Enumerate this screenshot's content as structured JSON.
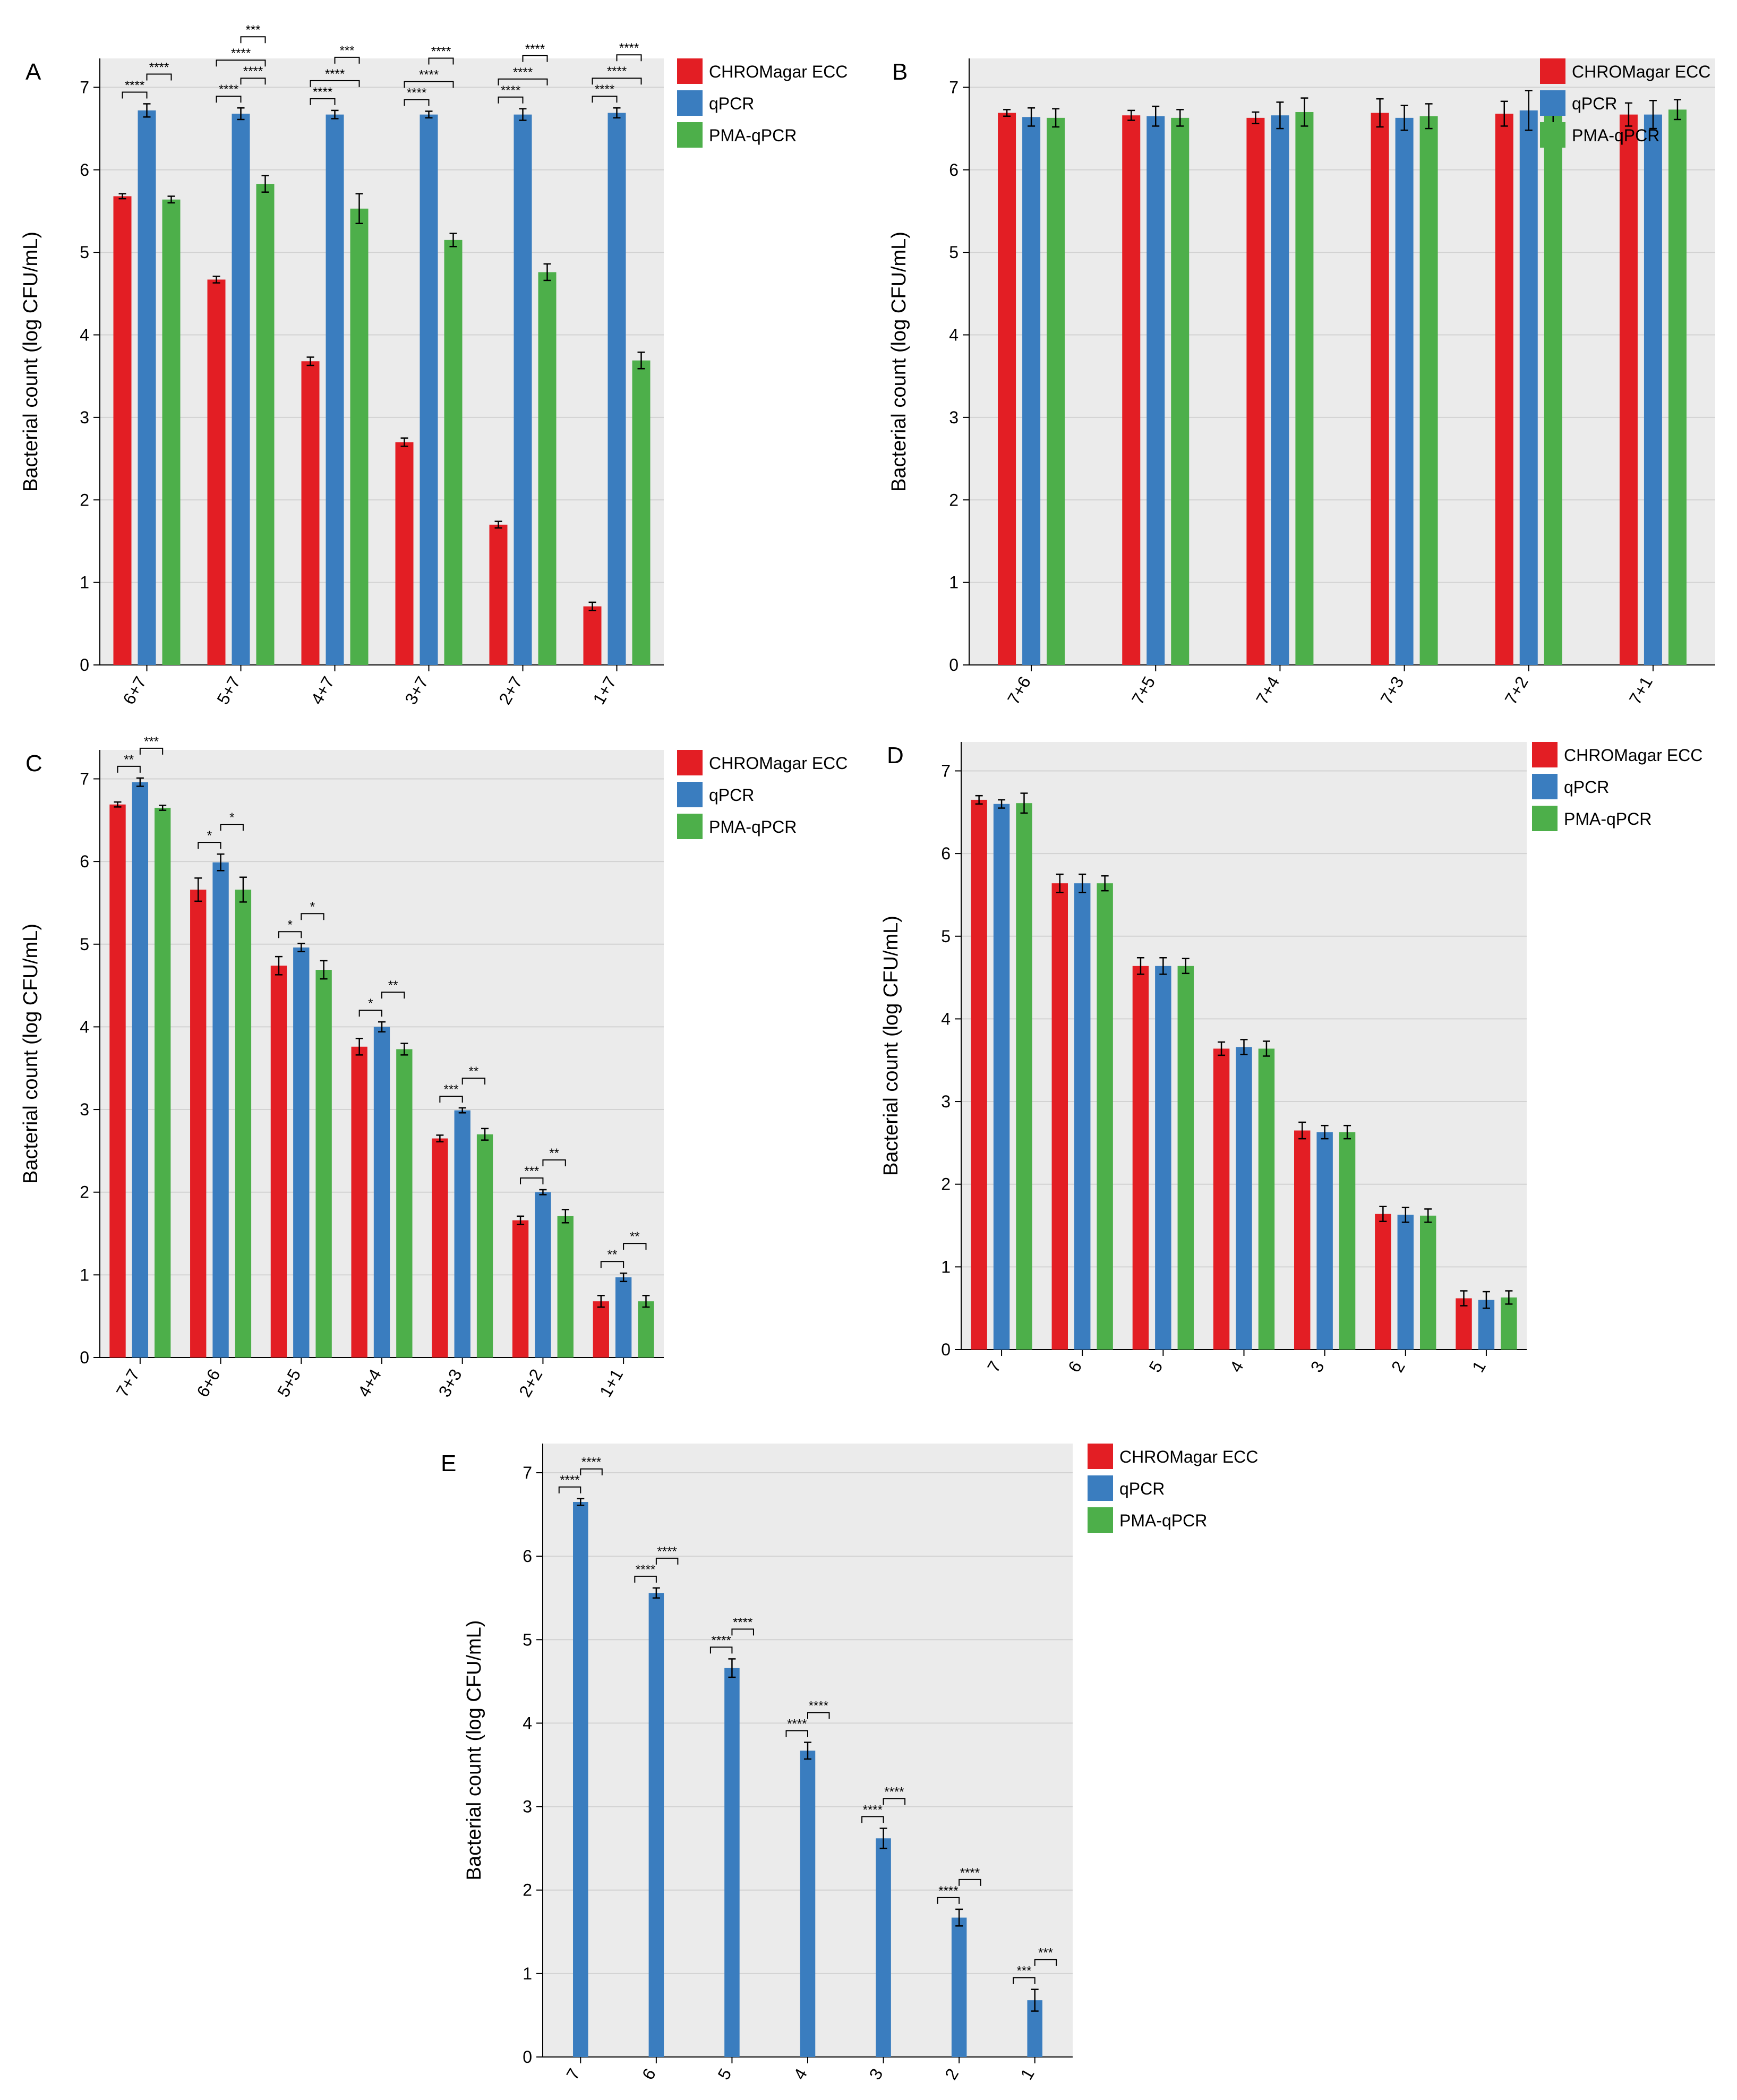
{
  "legend": {
    "items": [
      "CHROMagar ECC",
      "qPCR",
      "PMA-qPCR"
    ]
  },
  "colors": {
    "CHROMagar ECC": "#e31e24",
    "qPCR": "#3a7dbf",
    "PMA-qPCR": "#4daf4a",
    "panel_background": "#ebebeb",
    "gridline": "#d2d2d2"
  },
  "chart_data": [
    {
      "panel": "A",
      "type": "bar",
      "ylabel": "Bacterial count (log CFU/mL)",
      "ylim": [
        0,
        7.35
      ],
      "yticks": [
        0,
        1,
        2,
        3,
        4,
        5,
        6,
        7
      ],
      "grid": true,
      "legend_position": "right",
      "categories": [
        "6+7",
        "5+7",
        "4+7",
        "3+7",
        "2+7",
        "1+7"
      ],
      "series": [
        {
          "name": "CHROMagar ECC",
          "values": [
            5.68,
            4.67,
            3.68,
            2.7,
            1.7,
            0.71
          ],
          "errors": [
            0.03,
            0.04,
            0.05,
            0.05,
            0.04,
            0.05
          ]
        },
        {
          "name": "qPCR",
          "values": [
            6.72,
            6.68,
            6.67,
            6.67,
            6.67,
            6.69
          ],
          "errors": [
            0.08,
            0.07,
            0.05,
            0.04,
            0.07,
            0.06
          ]
        },
        {
          "name": "PMA-qPCR",
          "values": [
            5.64,
            5.83,
            5.53,
            5.15,
            4.76,
            3.69
          ],
          "errors": [
            0.04,
            0.1,
            0.18,
            0.08,
            0.1,
            0.1
          ]
        }
      ],
      "significance": [
        {
          "group": 0,
          "pair": "CHROMagar ECC-qPCR",
          "label": "****"
        },
        {
          "group": 0,
          "pair": "qPCR-PMA-qPCR",
          "label": "****"
        },
        {
          "group": 1,
          "pair": "CHROMagar ECC-qPCR",
          "label": "****"
        },
        {
          "group": 1,
          "pair": "qPCR-PMA-qPCR",
          "label": "****"
        },
        {
          "group": 1,
          "pair": "CHROMagar ECC-PMA-qPCR",
          "label": "****"
        },
        {
          "group": 1,
          "pair": "qPCR-PMA-qPCR",
          "label": "***",
          "tier": 2
        },
        {
          "group": 2,
          "pair": "CHROMagar ECC-qPCR",
          "label": "****"
        },
        {
          "group": 2,
          "pair": "CHROMagar ECC-PMA-qPCR",
          "label": "****"
        },
        {
          "group": 2,
          "pair": "qPCR-PMA-qPCR",
          "label": "***",
          "tier": 2
        },
        {
          "group": 3,
          "pair": "CHROMagar ECC-qPCR",
          "label": "****"
        },
        {
          "group": 3,
          "pair": "CHROMagar ECC-PMA-qPCR",
          "label": "****"
        },
        {
          "group": 3,
          "pair": "qPCR-PMA-qPCR",
          "label": "****",
          "tier": 2
        },
        {
          "group": 4,
          "pair": "CHROMagar ECC-qPCR",
          "label": "****"
        },
        {
          "group": 4,
          "pair": "CHROMagar ECC-PMA-qPCR",
          "label": "****"
        },
        {
          "group": 4,
          "pair": "qPCR-PMA-qPCR",
          "label": "****",
          "tier": 2
        },
        {
          "group": 5,
          "pair": "CHROMagar ECC-qPCR",
          "label": "****"
        },
        {
          "group": 5,
          "pair": "CHROMagar ECC-PMA-qPCR",
          "label": "****"
        },
        {
          "group": 5,
          "pair": "qPCR-PMA-qPCR",
          "label": "****",
          "tier": 2
        }
      ]
    },
    {
      "panel": "B",
      "type": "bar",
      "ylabel": "Bacterial count (log CFU/mL)",
      "ylim": [
        0,
        7.35
      ],
      "yticks": [
        0,
        1,
        2,
        3,
        4,
        5,
        6,
        7
      ],
      "grid": true,
      "legend_position": "right",
      "categories": [
        "7+6",
        "7+5",
        "7+4",
        "7+3",
        "7+2",
        "7+1"
      ],
      "series": [
        {
          "name": "CHROMagar ECC",
          "values": [
            6.69,
            6.66,
            6.63,
            6.69,
            6.68,
            6.67
          ],
          "errors": [
            0.04,
            0.06,
            0.07,
            0.17,
            0.15,
            0.14
          ]
        },
        {
          "name": "qPCR",
          "values": [
            6.64,
            6.65,
            6.66,
            6.63,
            6.72,
            6.67
          ],
          "errors": [
            0.11,
            0.12,
            0.16,
            0.15,
            0.24,
            0.17
          ]
        },
        {
          "name": "PMA-qPCR",
          "values": [
            6.63,
            6.63,
            6.7,
            6.65,
            6.66,
            6.73
          ],
          "errors": [
            0.11,
            0.1,
            0.17,
            0.15,
            0.12,
            0.12
          ]
        }
      ],
      "significance": []
    },
    {
      "panel": "C",
      "type": "bar",
      "ylabel": "Bacterial count (log CFU/mL)",
      "ylim": [
        0,
        7.35
      ],
      "yticks": [
        0,
        1,
        2,
        3,
        4,
        5,
        6,
        7
      ],
      "grid": true,
      "legend_position": "right",
      "categories": [
        "7+7",
        "6+6",
        "5+5",
        "4+4",
        "3+3",
        "2+2",
        "1+1"
      ],
      "series": [
        {
          "name": "CHROMagar ECC",
          "values": [
            6.69,
            5.66,
            4.74,
            3.76,
            2.65,
            1.66,
            0.68
          ],
          "errors": [
            0.03,
            0.14,
            0.11,
            0.1,
            0.04,
            0.05,
            0.07
          ]
        },
        {
          "name": "qPCR",
          "values": [
            6.96,
            5.99,
            4.96,
            4.0,
            2.99,
            2.0,
            0.97
          ],
          "errors": [
            0.05,
            0.1,
            0.05,
            0.06,
            0.03,
            0.03,
            0.05
          ]
        },
        {
          "name": "PMA-qPCR",
          "values": [
            6.65,
            5.66,
            4.69,
            3.73,
            2.7,
            1.71,
            0.68
          ],
          "errors": [
            0.03,
            0.15,
            0.11,
            0.07,
            0.07,
            0.08,
            0.07
          ]
        }
      ],
      "significance": [
        {
          "group": 0,
          "pair": "CHROMagar ECC-qPCR",
          "label": "**"
        },
        {
          "group": 0,
          "pair": "qPCR-PMA-qPCR",
          "label": "***"
        },
        {
          "group": 1,
          "pair": "CHROMagar ECC-qPCR",
          "label": "*"
        },
        {
          "group": 1,
          "pair": "qPCR-PMA-qPCR",
          "label": "*"
        },
        {
          "group": 2,
          "pair": "CHROMagar ECC-qPCR",
          "label": "*"
        },
        {
          "group": 2,
          "pair": "qPCR-PMA-qPCR",
          "label": "*"
        },
        {
          "group": 3,
          "pair": "CHROMagar ECC-qPCR",
          "label": "*"
        },
        {
          "group": 3,
          "pair": "qPCR-PMA-qPCR",
          "label": "**"
        },
        {
          "group": 4,
          "pair": "CHROMagar ECC-qPCR",
          "label": "***"
        },
        {
          "group": 4,
          "pair": "qPCR-PMA-qPCR",
          "label": "**"
        },
        {
          "group": 5,
          "pair": "CHROMagar ECC-qPCR",
          "label": "***"
        },
        {
          "group": 5,
          "pair": "qPCR-PMA-qPCR",
          "label": "**"
        },
        {
          "group": 6,
          "pair": "CHROMagar ECC-qPCR",
          "label": "**"
        },
        {
          "group": 6,
          "pair": "qPCR-PMA-qPCR",
          "label": "**"
        }
      ]
    },
    {
      "panel": "D",
      "type": "bar",
      "ylabel": "Bacterial count (log CFU/mL)",
      "ylim": [
        0,
        7.35
      ],
      "yticks": [
        0,
        1,
        2,
        3,
        4,
        5,
        6,
        7
      ],
      "grid": true,
      "legend_position": "right",
      "categories": [
        "7",
        "6",
        "5",
        "4",
        "3",
        "2",
        "1"
      ],
      "series": [
        {
          "name": "CHROMagar ECC",
          "values": [
            6.65,
            5.64,
            4.64,
            3.64,
            2.65,
            1.64,
            0.62
          ],
          "errors": [
            0.05,
            0.11,
            0.1,
            0.08,
            0.1,
            0.09,
            0.09
          ]
        },
        {
          "name": "qPCR",
          "values": [
            6.6,
            5.64,
            4.64,
            3.66,
            2.63,
            1.63,
            0.6
          ],
          "errors": [
            0.05,
            0.11,
            0.1,
            0.09,
            0.08,
            0.09,
            0.1
          ]
        },
        {
          "name": "PMA-qPCR",
          "values": [
            6.61,
            5.64,
            4.64,
            3.64,
            2.63,
            1.62,
            0.63
          ],
          "errors": [
            0.12,
            0.09,
            0.09,
            0.09,
            0.08,
            0.08,
            0.08
          ]
        }
      ],
      "significance": []
    },
    {
      "panel": "E",
      "type": "bar",
      "ylabel": "Bacterial count (log CFU/mL)",
      "ylim": [
        0,
        7.35
      ],
      "yticks": [
        0,
        1,
        2,
        3,
        4,
        5,
        6,
        7
      ],
      "grid": true,
      "legend_position": "right",
      "categories": [
        "7",
        "6",
        "5",
        "4",
        "3",
        "2",
        "1"
      ],
      "series": [
        {
          "name": "CHROMagar ECC",
          "values": [
            0,
            0,
            0,
            0,
            0,
            0,
            0
          ],
          "errors": [
            0,
            0,
            0,
            0,
            0,
            0,
            0
          ]
        },
        {
          "name": "qPCR",
          "values": [
            6.65,
            5.56,
            4.66,
            3.67,
            2.62,
            1.67,
            0.68
          ],
          "errors": [
            0.04,
            0.06,
            0.11,
            0.1,
            0.12,
            0.1,
            0.13
          ]
        },
        {
          "name": "PMA-qPCR",
          "values": [
            0,
            0,
            0,
            0,
            0,
            0,
            0
          ],
          "errors": [
            0,
            0,
            0,
            0,
            0,
            0,
            0
          ]
        }
      ],
      "significance": [
        {
          "group": 0,
          "pair": "CHROMagar ECC-qPCR",
          "label": "****"
        },
        {
          "group": 0,
          "pair": "qPCR-PMA-qPCR",
          "label": "****"
        },
        {
          "group": 1,
          "pair": "CHROMagar ECC-qPCR",
          "label": "****"
        },
        {
          "group": 1,
          "pair": "qPCR-PMA-qPCR",
          "label": "****"
        },
        {
          "group": 2,
          "pair": "CHROMagar ECC-qPCR",
          "label": "****"
        },
        {
          "group": 2,
          "pair": "qPCR-PMA-qPCR",
          "label": "****"
        },
        {
          "group": 3,
          "pair": "CHROMagar ECC-qPCR",
          "label": "****"
        },
        {
          "group": 3,
          "pair": "qPCR-PMA-qPCR",
          "label": "****"
        },
        {
          "group": 4,
          "pair": "CHROMagar ECC-qPCR",
          "label": "****"
        },
        {
          "group": 4,
          "pair": "qPCR-PMA-qPCR",
          "label": "****"
        },
        {
          "group": 5,
          "pair": "CHROMagar ECC-qPCR",
          "label": "****"
        },
        {
          "group": 5,
          "pair": "qPCR-PMA-qPCR",
          "label": "****"
        },
        {
          "group": 6,
          "pair": "CHROMagar ECC-qPCR",
          "label": "***"
        },
        {
          "group": 6,
          "pair": "qPCR-PMA-qPCR",
          "label": "***"
        }
      ]
    }
  ]
}
